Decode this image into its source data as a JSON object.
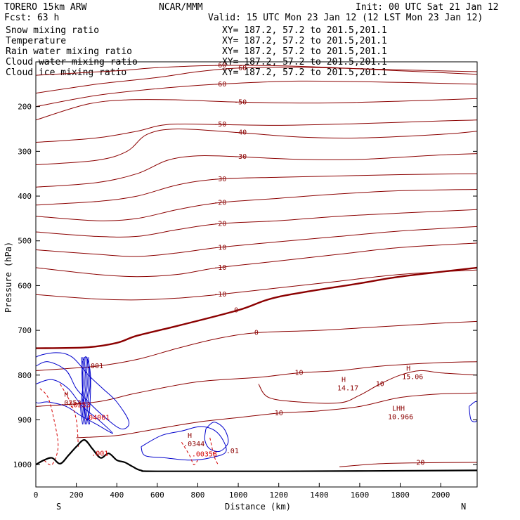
{
  "header": {
    "model": "TORERO  15km ARW",
    "forecast": "Fcst:   63 h",
    "center": "NCAR/MMM",
    "init": "Init: 00 UTC Sat 21 Jan 12",
    "valid": "Valid: 15 UTC Mon 23 Jan 12 (12 LST Mon 23 Jan 12)"
  },
  "fields": [
    {
      "name": "Snow mixing ratio",
      "color": "#000000",
      "xy": "XY= 187.2, 57.2 to 201.5,201.1"
    },
    {
      "name": "Temperature",
      "color": "#8b0000",
      "xy": "XY= 187.2, 57.2 to 201.5,201.1"
    },
    {
      "name": "Rain water mixing ratio",
      "color": "#d40000",
      "xy": "XY= 187.2, 57.2 to 201.5,201.1"
    },
    {
      "name": "Cloud water mixing ratio",
      "color": "#0000cc",
      "xy": "XY= 187.2, 57.2 to 201.5,201.1"
    },
    {
      "name": "Cloud ice mixing ratio",
      "color": "#000000",
      "xy": "XY= 187.2, 57.2 to 201.5,201.1"
    }
  ],
  "chart_data": {
    "type": "contour-cross-section",
    "xlabel": "Distance (km)",
    "ylabel": "Pressure (hPa)",
    "xlim": [
      0,
      2180
    ],
    "ylim": [
      100,
      1050
    ],
    "x_ticks": [
      0,
      200,
      400,
      600,
      800,
      1000,
      1200,
      1400,
      1600,
      1800,
      2000
    ],
    "y_ticks": [
      200,
      300,
      400,
      500,
      600,
      700,
      800,
      900,
      1000
    ],
    "end_labels": {
      "left": "S",
      "right": "N"
    },
    "colors": {
      "temperature": "#8b0000",
      "cloud_water": "#0000cc",
      "rain": "#d40000",
      "terrain": "#000000"
    },
    "temperature_isotherms": [
      {
        "value": -60,
        "label": "-60",
        "points": [
          [
            0,
            130
          ],
          [
            400,
            120
          ],
          [
            600,
            113
          ],
          [
            900,
            108
          ],
          [
            1300,
            110
          ],
          [
            1800,
            120
          ],
          [
            2180,
            128
          ]
        ]
      },
      {
        "value": -60,
        "label": "-60",
        "points": [
          [
            0,
            170
          ],
          [
            300,
            150
          ],
          [
            600,
            135
          ],
          [
            800,
            122
          ],
          [
            1000,
            114
          ],
          [
            1300,
            112
          ],
          [
            1800,
            118
          ],
          [
            2180,
            122
          ]
        ]
      },
      {
        "value": -60,
        "label": "-60",
        "points": [
          [
            0,
            200
          ],
          [
            300,
            175
          ],
          [
            600,
            160
          ],
          [
            900,
            150
          ],
          [
            1300,
            143
          ],
          [
            1800,
            146
          ],
          [
            2180,
            150
          ]
        ]
      },
      {
        "value": -50,
        "label": "-50",
        "points": [
          [
            0,
            230
          ],
          [
            250,
            195
          ],
          [
            450,
            185
          ],
          [
            700,
            185
          ],
          [
            1000,
            190
          ],
          [
            1400,
            192
          ],
          [
            1800,
            188
          ],
          [
            2180,
            182
          ]
        ]
      },
      {
        "value": -50,
        "label": "-50",
        "points": [
          [
            0,
            280
          ],
          [
            300,
            270
          ],
          [
            500,
            255
          ],
          [
            650,
            240
          ],
          [
            900,
            240
          ],
          [
            1200,
            242
          ],
          [
            1600,
            238
          ],
          [
            2000,
            232
          ],
          [
            2180,
            230
          ]
        ]
      },
      {
        "value": -40,
        "label": "-40",
        "points": [
          [
            0,
            330
          ],
          [
            300,
            320
          ],
          [
            450,
            300
          ],
          [
            550,
            262
          ],
          [
            700,
            250
          ],
          [
            1000,
            258
          ],
          [
            1300,
            268
          ],
          [
            1600,
            270
          ],
          [
            2000,
            262
          ],
          [
            2180,
            255
          ]
        ]
      },
      {
        "value": -30,
        "label": "-30",
        "points": [
          [
            0,
            380
          ],
          [
            300,
            370
          ],
          [
            500,
            350
          ],
          [
            650,
            320
          ],
          [
            800,
            310
          ],
          [
            1000,
            312
          ],
          [
            1300,
            318
          ],
          [
            1600,
            318
          ],
          [
            2000,
            308
          ],
          [
            2180,
            305
          ]
        ]
      },
      {
        "value": -30,
        "label": "-30",
        "points": [
          [
            0,
            420
          ],
          [
            300,
            412
          ],
          [
            500,
            400
          ],
          [
            700,
            375
          ],
          [
            900,
            362
          ],
          [
            1200,
            358
          ],
          [
            1500,
            355
          ],
          [
            1800,
            352
          ],
          [
            2180,
            350
          ]
        ]
      },
      {
        "value": -20,
        "label": "-20",
        "points": [
          [
            0,
            445
          ],
          [
            300,
            455
          ],
          [
            500,
            450
          ],
          [
            700,
            430
          ],
          [
            900,
            415
          ],
          [
            1200,
            405
          ],
          [
            1500,
            395
          ],
          [
            1800,
            388
          ],
          [
            2180,
            385
          ]
        ]
      },
      {
        "value": -20,
        "label": "-20",
        "points": [
          [
            0,
            480
          ],
          [
            300,
            490
          ],
          [
            500,
            490
          ],
          [
            700,
            475
          ],
          [
            900,
            462
          ],
          [
            1200,
            455
          ],
          [
            1500,
            445
          ],
          [
            1800,
            438
          ],
          [
            2180,
            430
          ]
        ]
      },
      {
        "value": -10,
        "label": "-10",
        "points": [
          [
            0,
            520
          ],
          [
            300,
            530
          ],
          [
            500,
            535
          ],
          [
            700,
            527
          ],
          [
            900,
            515
          ],
          [
            1200,
            502
          ],
          [
            1500,
            490
          ],
          [
            1800,
            478
          ],
          [
            2180,
            468
          ]
        ]
      },
      {
        "value": -10,
        "label": "-10",
        "points": [
          [
            0,
            560
          ],
          [
            300,
            575
          ],
          [
            500,
            580
          ],
          [
            700,
            575
          ],
          [
            900,
            560
          ],
          [
            1200,
            545
          ],
          [
            1500,
            530
          ],
          [
            1800,
            515
          ],
          [
            2180,
            505
          ]
        ]
      },
      {
        "value": -10,
        "label": "-10",
        "points": [
          [
            0,
            620
          ],
          [
            300,
            630
          ],
          [
            500,
            632
          ],
          [
            700,
            628
          ],
          [
            900,
            620
          ],
          [
            1200,
            605
          ],
          [
            1500,
            590
          ],
          [
            1800,
            575
          ],
          [
            2180,
            565
          ]
        ]
      },
      {
        "value": 0,
        "label": "0",
        "points": [
          [
            0,
            740
          ],
          [
            250,
            738
          ],
          [
            400,
            728
          ],
          [
            500,
            712
          ],
          [
            700,
            690
          ],
          [
            1000,
            655
          ],
          [
            1200,
            625
          ],
          [
            1600,
            595
          ],
          [
            1800,
            580
          ],
          [
            2180,
            560
          ]
        ],
        "bold": true
      },
      {
        "value": 0,
        "label": "0",
        "points": [
          [
            0,
            790
          ],
          [
            300,
            780
          ],
          [
            500,
            765
          ],
          [
            700,
            740
          ],
          [
            900,
            718
          ],
          [
            1100,
            705
          ],
          [
            1400,
            700
          ],
          [
            1700,
            692
          ],
          [
            2000,
            684
          ],
          [
            2180,
            680
          ]
        ]
      },
      {
        "value": 10,
        "label": "10",
        "points": [
          [
            0,
            870
          ],
          [
            300,
            860
          ],
          [
            500,
            840
          ],
          [
            800,
            815
          ],
          [
            1100,
            805
          ],
          [
            1300,
            795
          ],
          [
            1500,
            790
          ],
          [
            1700,
            780
          ],
          [
            2000,
            772
          ],
          [
            2180,
            770
          ]
        ]
      },
      {
        "value": 10,
        "label": "10",
        "points": [
          [
            200,
            940
          ],
          [
            400,
            935
          ],
          [
            600,
            920
          ],
          [
            800,
            905
          ],
          [
            1000,
            895
          ],
          [
            1200,
            885
          ],
          [
            1400,
            880
          ],
          [
            1600,
            870
          ],
          [
            1800,
            850
          ],
          [
            2000,
            842
          ],
          [
            2180,
            840
          ]
        ]
      },
      {
        "value": 10,
        "label": "10",
        "points": [
          [
            1100,
            820
          ],
          [
            1150,
            850
          ],
          [
            1300,
            860
          ],
          [
            1500,
            862
          ],
          [
            1600,
            845
          ],
          [
            1700,
            820
          ],
          [
            1800,
            800
          ],
          [
            1900,
            790
          ],
          [
            2000,
            795
          ],
          [
            2180,
            800
          ]
        ]
      },
      {
        "value": 20,
        "label": "20",
        "points": [
          [
            1500,
            1005
          ],
          [
            1700,
            998
          ],
          [
            1900,
            996
          ],
          [
            2180,
            995
          ]
        ]
      }
    ],
    "cloud_water_features": [
      {
        "label": ".001",
        "x": 250,
        "p": 785
      },
      {
        "label": ".01",
        "x": 940,
        "p": 975
      }
    ],
    "rain_features": [
      {
        "label": ".0253",
        "x": 165,
        "p": 872
      },
      {
        "label": ".04001",
        "x": 240,
        "p": 900
      },
      {
        "label": ".001",
        "x": 275,
        "p": 980
      },
      {
        "label": ".00358",
        "x": 770,
        "p": 982
      }
    ],
    "maxima": [
      {
        "label": "H",
        "value": "14.17",
        "x": 1510,
        "p": 815
      },
      {
        "label": "H",
        "value": "15.06",
        "x": 1830,
        "p": 790
      },
      {
        "label": "LHH",
        "value": "10.966",
        "x": 1760,
        "p": 880
      },
      {
        "label": "H",
        "value": ".0253",
        "x": 140,
        "p": 848
      },
      {
        "label": "H",
        "value": ".0344",
        "x": 750,
        "p": 940
      }
    ],
    "terrain": [
      [
        0,
        1000
      ],
      [
        40,
        990
      ],
      [
        80,
        985
      ],
      [
        120,
        998
      ],
      [
        160,
        980
      ],
      [
        200,
        960
      ],
      [
        240,
        945
      ],
      [
        280,
        965
      ],
      [
        320,
        985
      ],
      [
        360,
        975
      ],
      [
        400,
        990
      ],
      [
        440,
        995
      ],
      [
        480,
        1005
      ],
      [
        520,
        1013
      ],
      [
        600,
        1015
      ],
      [
        1200,
        1015
      ],
      [
        2180,
        1013
      ]
    ]
  }
}
